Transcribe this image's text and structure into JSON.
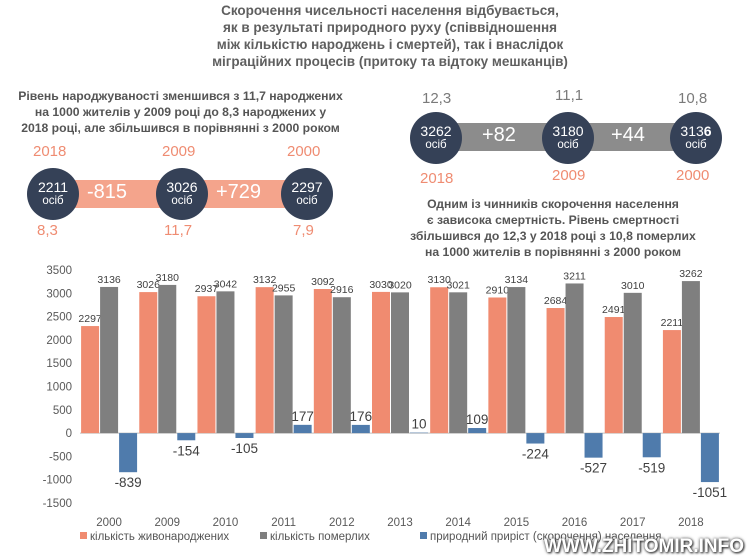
{
  "title": "Скорочення чисельності населення відбувається,\nяк в результаті природного руху (співвідношення\nміж кількістю народжень і смертей), так і внаслідок\nміграційних процесів (притоку та відтоку мешканців)",
  "births_text": "Рівень народжуваності зменшився з 11,7 народжених\nна 1000 жителів у 2009 році  до 8,3 народжених у\n2018 році, але збільшився в порівнянні з 2000 роком",
  "deaths_text": "Одним із чинників скорочення населення\nє зависока смертність. Рівень смертності\nзбільшився до 12,3 у 2018 році з 10,8 померлих\nна 1000 жителів в порівнянні з 2000 роком",
  "births_graphic": {
    "years": [
      "2018",
      "2009",
      "2000"
    ],
    "counts": [
      "2211",
      "3026",
      "2297"
    ],
    "unit": "осіб",
    "rates": [
      "8,3",
      "11,7",
      "7,9"
    ],
    "changes": [
      "-815",
      "+729"
    ]
  },
  "deaths_graphic": {
    "rates": [
      "12,3",
      "11,1",
      "10,8"
    ],
    "counts": [
      "3262",
      "3180",
      "313"
    ],
    "last_digit": "6",
    "unit": "осіб",
    "years": [
      "2018",
      "2009",
      "2000"
    ],
    "changes": [
      "+82",
      "+44"
    ]
  },
  "colors": {
    "births": "#f08b70",
    "deaths": "#7f7f7f",
    "natural": "#4f7bac",
    "circle": "#354157"
  },
  "chart_data": {
    "type": "bar",
    "categories": [
      "2000",
      "2009",
      "2010",
      "2011",
      "2012",
      "2013",
      "2014",
      "2015",
      "2016",
      "2017",
      "2018"
    ],
    "series": [
      {
        "name": "кількість живонароджених",
        "values": [
          2297,
          3026,
          2937,
          3132,
          3092,
          3030,
          3130,
          2910,
          2684,
          2491,
          2211
        ]
      },
      {
        "name": "кількість померлих",
        "values": [
          3136,
          3180,
          3042,
          2955,
          2916,
          3020,
          3021,
          3134,
          3211,
          3010,
          3262
        ]
      },
      {
        "name": "природний приріст (скорочення) населення",
        "values": [
          -839,
          -154,
          -105,
          177,
          176,
          10,
          109,
          -224,
          -527,
          -519,
          -1051
        ]
      }
    ],
    "ylim": [
      -1500,
      3500
    ],
    "yticks": [
      -1500,
      -1000,
      -500,
      0,
      500,
      1000,
      1500,
      2000,
      2500,
      3000,
      3500
    ]
  },
  "legend": [
    "кількість живонароджених",
    "кількість померлих",
    "природний приріст (скорочення) населення"
  ],
  "watermark": "WWW.ZHITOMIR.INFO"
}
